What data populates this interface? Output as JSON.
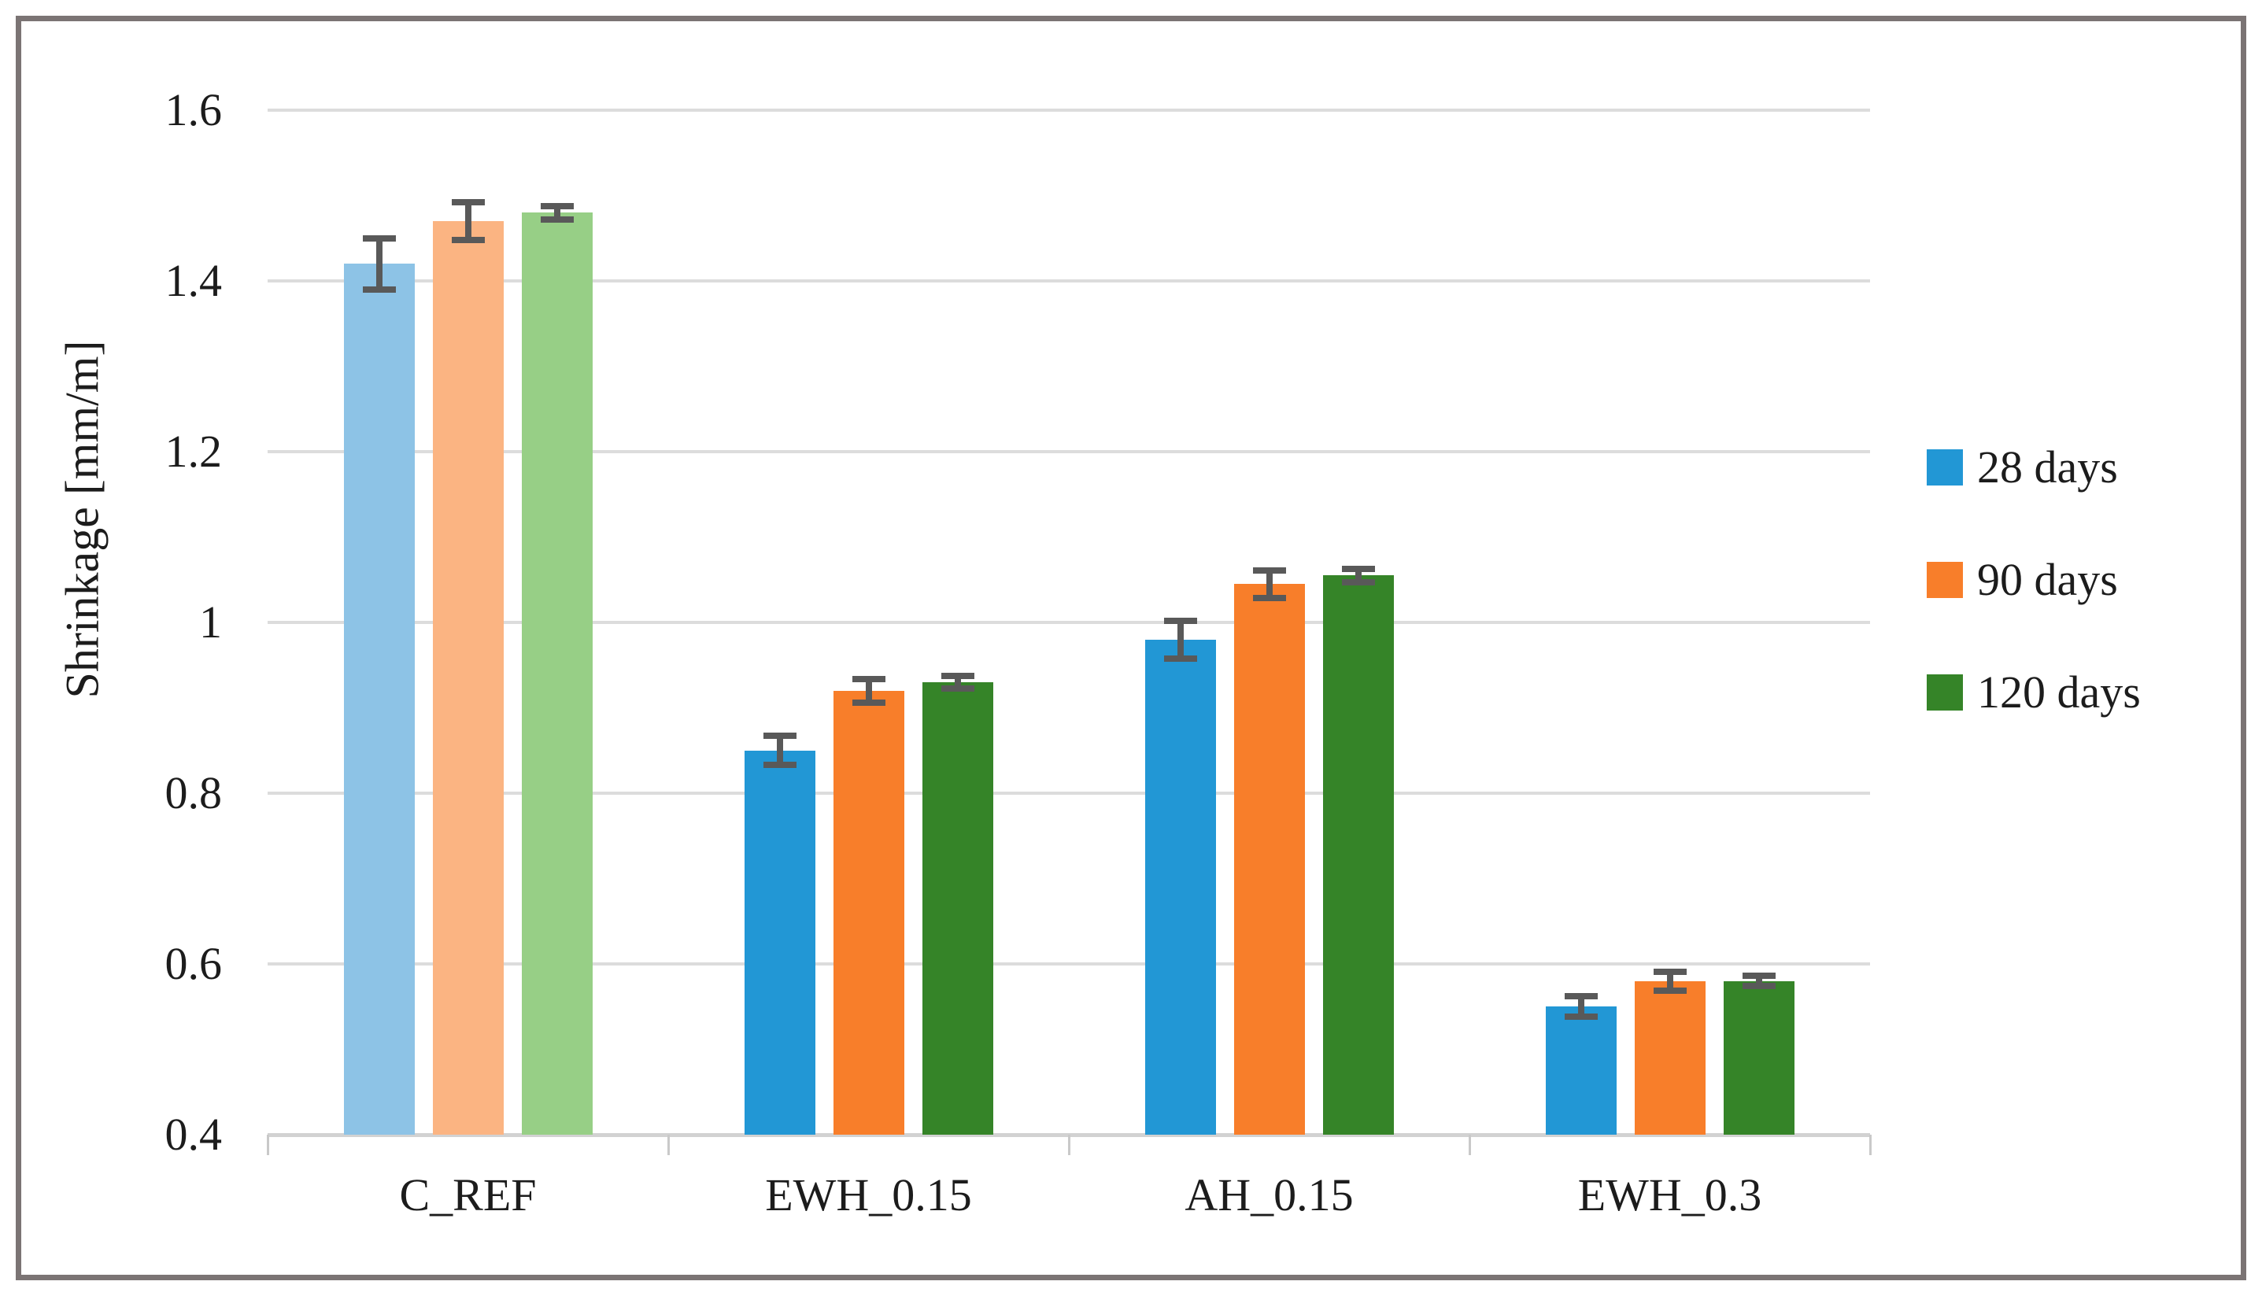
{
  "chart_data": {
    "type": "bar",
    "title": "",
    "xlabel": "",
    "ylabel": "Shrinkage [mm/m]",
    "ylim": [
      0.4,
      1.6
    ],
    "yticks": [
      1.6,
      1.4,
      1.2,
      1.0,
      0.8,
      0.6,
      0.4
    ],
    "ytick_labels": [
      "1.6",
      "1.4",
      "1.2",
      "1",
      "0.8",
      "0.6",
      "0.4"
    ],
    "grid": true,
    "legend_position": "right",
    "categories": [
      "C_REF",
      "EWH_0.15",
      "AH_0.15",
      "EWH_0.3"
    ],
    "muted_category": "C_REF",
    "series": [
      {
        "name": "28 days",
        "color": "#2297D5",
        "muted_color": "#8DC3E6",
        "values": [
          1.42,
          0.85,
          0.98,
          0.55
        ],
        "errors": [
          0.03,
          0.017,
          0.022,
          0.012
        ]
      },
      {
        "name": "90 days",
        "color": "#F87E2A",
        "muted_color": "#FBB482",
        "values": [
          1.47,
          0.92,
          1.045,
          0.58
        ],
        "errors": [
          0.022,
          0.014,
          0.016,
          0.011
        ]
      },
      {
        "name": "120 days",
        "color": "#358428",
        "muted_color": "#97CF86",
        "values": [
          1.48,
          0.93,
          1.055,
          0.58
        ],
        "errors": [
          0.008,
          0.007,
          0.008,
          0.006
        ]
      }
    ],
    "error_bar_color": "#595959"
  }
}
